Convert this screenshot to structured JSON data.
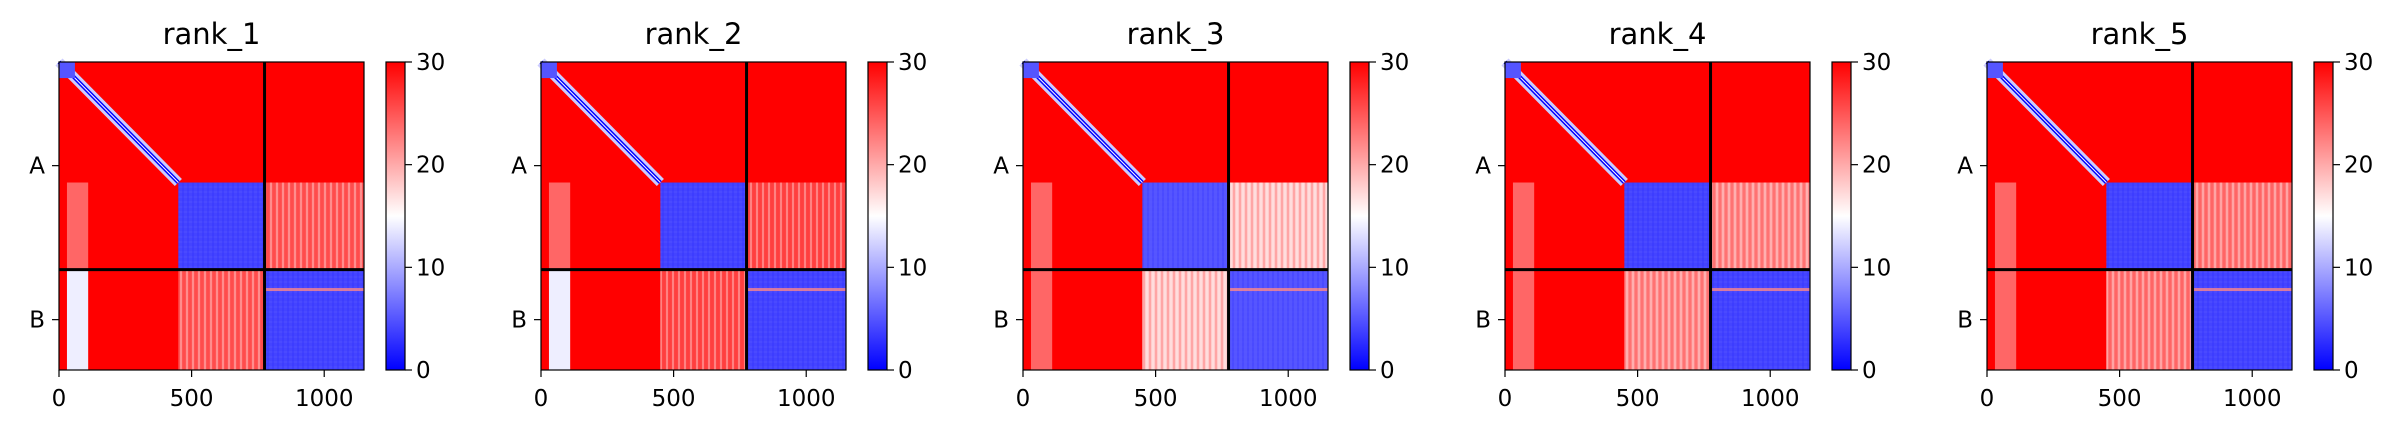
{
  "chart_data": {
    "type": "heatmap",
    "colormap": {
      "name": "bwr",
      "low": "#0000ff",
      "mid": "#ffffff",
      "high": "#ff0000"
    },
    "color_range": [
      0,
      30
    ],
    "colorbar_ticks": [
      "0",
      "10",
      "20",
      "30"
    ],
    "x_range": [
      0,
      1150
    ],
    "x_ticks": [
      {
        "value": 0,
        "label": "0"
      },
      {
        "value": 500,
        "label": "500"
      },
      {
        "value": 1000,
        "label": "1000"
      }
    ],
    "chain_boundary": 775,
    "sequence_length": 1150,
    "chain_labels": [
      {
        "label": "A",
        "center": 387
      },
      {
        "label": "B",
        "center": 962
      }
    ],
    "domain_boundary": 450,
    "panels": [
      {
        "title": "rank_1",
        "offdiag_AB_level": 25,
        "domain_contact_level": 4
      },
      {
        "title": "rank_2",
        "offdiag_AB_level": 26,
        "domain_contact_level": 4
      },
      {
        "title": "rank_3",
        "offdiag_AB_level": 18,
        "domain_contact_level": 5
      },
      {
        "title": "rank_4",
        "offdiag_AB_level": 22,
        "domain_contact_level": 4
      },
      {
        "title": "rank_5",
        "offdiag_AB_level": 23,
        "domain_contact_level": 4
      }
    ]
  }
}
